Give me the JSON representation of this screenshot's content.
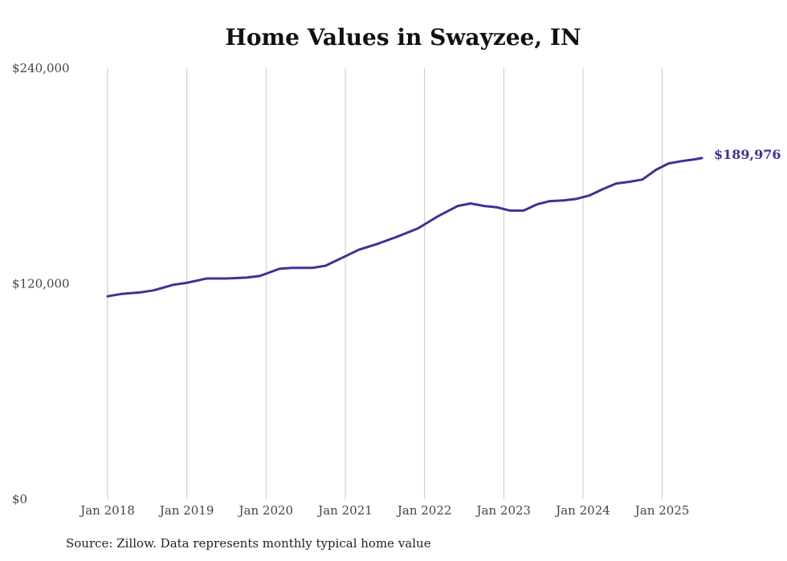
{
  "chart_data": {
    "type": "line",
    "title": "Home Values in Swayzee, IN",
    "xlabel": "",
    "ylabel": "",
    "ylim": [
      0,
      240000
    ],
    "yticks": [
      {
        "value": 0,
        "label": "$0"
      },
      {
        "value": 120000,
        "label": "$120,000"
      },
      {
        "value": 240000,
        "label": "$240,000"
      }
    ],
    "xticks": [
      {
        "value": 2018,
        "label": "Jan 2018"
      },
      {
        "value": 2019,
        "label": "Jan 2019"
      },
      {
        "value": 2020,
        "label": "Jan 2020"
      },
      {
        "value": 2021,
        "label": "Jan 2021"
      },
      {
        "value": 2022,
        "label": "Jan 2022"
      },
      {
        "value": 2023,
        "label": "Jan 2023"
      },
      {
        "value": 2024,
        "label": "Jan 2024"
      },
      {
        "value": 2025,
        "label": "Jan 2025"
      }
    ],
    "xlim": [
      2018,
      2025.5
    ],
    "grid": "vertical",
    "series": [
      {
        "color": "#3b3494",
        "end_label": "$189,976",
        "points": [
          {
            "x": 2018.0,
            "y": 113000
          },
          {
            "x": 2018.17,
            "y": 114300
          },
          {
            "x": 2018.42,
            "y": 115200
          },
          {
            "x": 2018.58,
            "y": 116300
          },
          {
            "x": 2018.83,
            "y": 119400
          },
          {
            "x": 2019.0,
            "y": 120500
          },
          {
            "x": 2019.25,
            "y": 122900
          },
          {
            "x": 2019.5,
            "y": 122900
          },
          {
            "x": 2019.75,
            "y": 123400
          },
          {
            "x": 2019.92,
            "y": 124300
          },
          {
            "x": 2020.17,
            "y": 128300
          },
          {
            "x": 2020.33,
            "y": 128800
          },
          {
            "x": 2020.58,
            "y": 128800
          },
          {
            "x": 2020.75,
            "y": 130000
          },
          {
            "x": 2021.0,
            "y": 135300
          },
          {
            "x": 2021.17,
            "y": 138900
          },
          {
            "x": 2021.42,
            "y": 142400
          },
          {
            "x": 2021.67,
            "y": 146400
          },
          {
            "x": 2021.92,
            "y": 150900
          },
          {
            "x": 2022.17,
            "y": 157600
          },
          {
            "x": 2022.42,
            "y": 163300
          },
          {
            "x": 2022.58,
            "y": 164700
          },
          {
            "x": 2022.75,
            "y": 163300
          },
          {
            "x": 2022.92,
            "y": 162500
          },
          {
            "x": 2023.08,
            "y": 160700
          },
          {
            "x": 2023.25,
            "y": 160700
          },
          {
            "x": 2023.42,
            "y": 164200
          },
          {
            "x": 2023.58,
            "y": 166000
          },
          {
            "x": 2023.75,
            "y": 166400
          },
          {
            "x": 2023.92,
            "y": 167300
          },
          {
            "x": 2024.08,
            "y": 169100
          },
          {
            "x": 2024.25,
            "y": 172700
          },
          {
            "x": 2024.42,
            "y": 175800
          },
          {
            "x": 2024.58,
            "y": 176700
          },
          {
            "x": 2024.75,
            "y": 178000
          },
          {
            "x": 2024.92,
            "y": 183400
          },
          {
            "x": 2025.08,
            "y": 187000
          },
          {
            "x": 2025.25,
            "y": 188300
          },
          {
            "x": 2025.42,
            "y": 189300
          },
          {
            "x": 2025.5,
            "y": 189976
          }
        ]
      }
    ]
  },
  "source_note": "Source: Zillow. Data represents monthly typical home value"
}
